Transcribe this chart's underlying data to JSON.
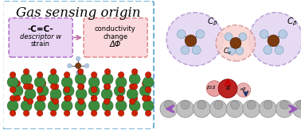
{
  "title": "Gas sensing origin",
  "title_fontsize": 12,
  "bg_color": "#ffffff",
  "outer_box_color": "#6aaad4",
  "left_box_bg": "#ead5f5",
  "left_box_border": "#b070c8",
  "right_box_bg": "#fadadd",
  "right_box_border": "#e08888",
  "left_text1": "-C=C-",
  "left_text2": "descriptor w",
  "left_text3": "strain",
  "right_text1": "conductivity",
  "right_text2": "change",
  "right_text3": "ΔΦ",
  "arrow_color": "#c070a0",
  "mol_brown": "#7B3A10",
  "mol_blue_gray": "#b8cce4",
  "mol_dark_red": "#990000",
  "lattice_green": "#3d8c3d",
  "lattice_red": "#cc2200",
  "sphere_gray": "#b0b0b0",
  "sphere_gray_dark": "#888888",
  "purple_arrow": "#9955bb",
  "ell_purple_fill": "#e0d0f0",
  "ell_purple_border": "#aa88cc",
  "ell_pink_fill": "#f8d0cc",
  "ell_pink_border": "#d09090",
  "red_arrow_color": "#cc0000",
  "dark_arrow_color": "#223366"
}
